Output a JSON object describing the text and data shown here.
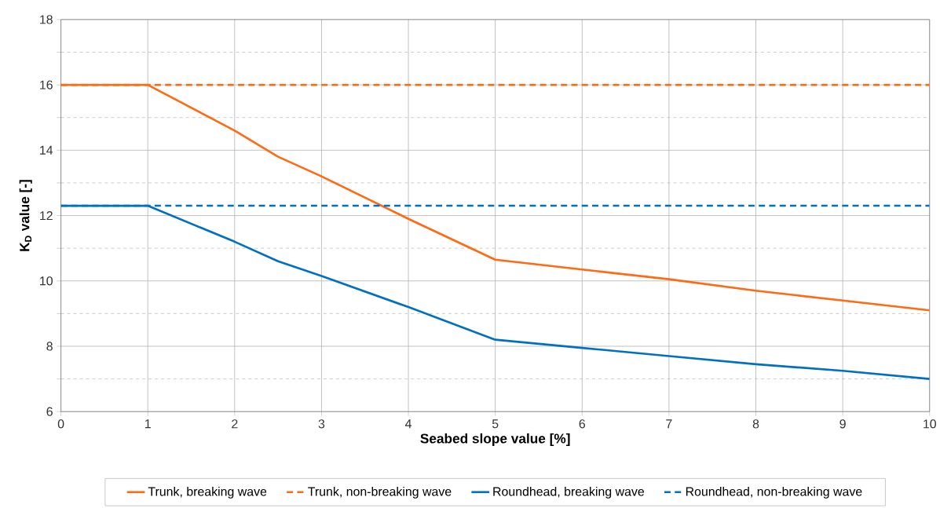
{
  "chart_data": {
    "type": "line",
    "xlabel": "Seabed slope value [%]",
    "ylabel": "K$_{D}$ value [-]",
    "x": [
      0,
      1,
      2,
      2.5,
      3,
      4,
      5,
      6,
      7,
      8,
      9,
      10
    ],
    "series": [
      {
        "name": "Trunk, breaking wave",
        "color": "#ff6a13",
        "line_style": "solid",
        "values": [
          16,
          16,
          14.6,
          13.8,
          13.2,
          11.9,
          10.65,
          10.35,
          10.05,
          9.7,
          9.4,
          9.1
        ]
      },
      {
        "name": "Trunk, non-breaking wave",
        "color": "#ff6a13",
        "line_style": "dashed",
        "values": [
          16,
          16,
          16,
          16,
          16,
          16,
          16,
          16,
          16,
          16,
          16,
          16
        ]
      },
      {
        "name": "Roundhead, breaking wave",
        "color": "#0070c0",
        "line_style": "solid",
        "values": [
          12.3,
          12.3,
          11.2,
          10.6,
          10.15,
          9.2,
          8.2,
          7.95,
          7.7,
          7.45,
          7.25,
          7.0
        ]
      },
      {
        "name": "Roundhead, non-breaking wave",
        "color": "#0070c0",
        "line_style": "dashed",
        "values": [
          12.3,
          12.3,
          12.3,
          12.3,
          12.3,
          12.3,
          12.3,
          12.3,
          12.3,
          12.3,
          12.3,
          12.3
        ]
      }
    ],
    "xlim": [
      0,
      10
    ],
    "ylim": [
      6,
      18
    ],
    "xticks": [
      0,
      1,
      2,
      3,
      4,
      5,
      6,
      7,
      8,
      9,
      10
    ],
    "yticks": [
      6,
      {
        "value": 7,
        "label": null
      },
      8,
      {
        "value": 9,
        "label": null
      },
      10,
      {
        "value": 11,
        "label": null
      },
      12,
      {
        "value": 13,
        "label": null
      },
      14,
      {
        "value": 15,
        "label": null
      },
      16,
      {
        "value": 17,
        "label": null
      },
      18
    ],
    "grid": true,
    "legend": "bottom",
    "marker": "none"
  }
}
